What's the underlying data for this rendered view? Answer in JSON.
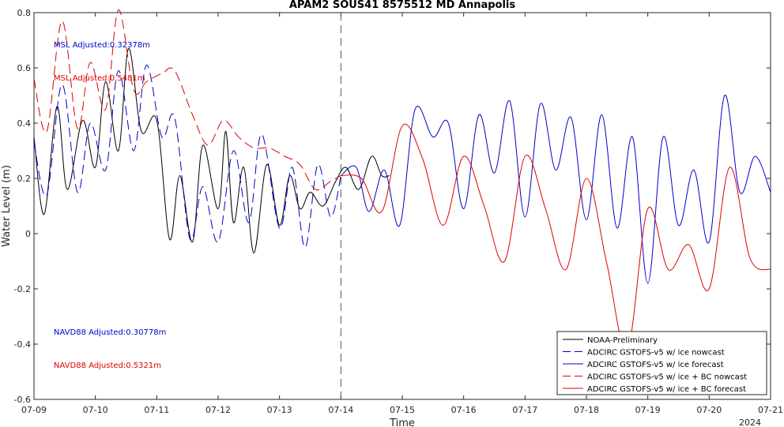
{
  "chart_data": {
    "type": "line",
    "title": "APAM2 SOUS41 8575512 MD Annapolis",
    "xlabel": "Time",
    "ylabel": "Water Level (m)",
    "year_label": "2024",
    "x_ticks": [
      "07-09",
      "07-10",
      "07-11",
      "07-12",
      "07-13",
      "07-14",
      "07-15",
      "07-16",
      "07-17",
      "07-18",
      "07-19",
      "07-20",
      "07-21"
    ],
    "x_range": [
      "2024-07-09",
      "2024-07-21"
    ],
    "y_ticks": [
      "-0.6",
      "-0.4",
      "-0.2",
      "0",
      "0.2",
      "0.4",
      "0.6",
      "0.8"
    ],
    "ylim": [
      -0.6,
      0.8
    ],
    "nowcast_forecast_divider": "2024-07-14",
    "grid": false,
    "legend_position": "bottom-right",
    "annotations": [
      {
        "text": "MSL Adjusted:0.32378m",
        "color": "#0000cc"
      },
      {
        "text": "MSL Adjusted:0.5481m",
        "color": "#e00000"
      },
      {
        "text": "NAVD88 Adjusted:0.30778m",
        "color": "#0000cc"
      },
      {
        "text": "NAVD88 Adjusted:0.5321m",
        "color": "#e00000"
      }
    ],
    "series": [
      {
        "name": "NOAA-Preliminary",
        "color": "#000000",
        "dash": false,
        "x": [
          "07-09 00:00",
          "07-09 04:00",
          "07-09 09:00",
          "07-09 13:00",
          "07-09 19:00",
          "07-10 00:00",
          "07-10 04:00",
          "07-10 09:00",
          "07-10 13:00",
          "07-10 18:00",
          "07-11 00:00",
          "07-11 05:00",
          "07-11 09:00",
          "07-11 14:00",
          "07-11 18:00",
          "07-12 00:00",
          "07-12 03:00",
          "07-12 06:00",
          "07-12 10:00",
          "07-12 14:00",
          "07-12 19:00",
          "07-13 00:00",
          "07-13 04:00",
          "07-13 08:00",
          "07-13 12:00",
          "07-13 17:00",
          "07-13 22:00",
          "07-14 02:00",
          "07-14 07:00",
          "07-14 12:00",
          "07-14 16:00",
          "07-14 19:00"
        ],
        "values": [
          0.35,
          0.07,
          0.46,
          0.16,
          0.41,
          0.24,
          0.55,
          0.3,
          0.67,
          0.37,
          0.41,
          -0.02,
          0.21,
          -0.03,
          0.32,
          0.09,
          0.37,
          0.04,
          0.24,
          -0.07,
          0.25,
          0.03,
          0.21,
          0.09,
          0.15,
          0.1,
          0.19,
          0.24,
          0.16,
          0.28,
          0.21,
          0.21
        ]
      },
      {
        "name": "ADCIRC GSTOFS-v5 w/ ice nowcast",
        "color": "#0000cc",
        "dash": true,
        "x": [
          "07-09 00:00",
          "07-09 05:00",
          "07-09 11:00",
          "07-09 17:00",
          "07-09 22:00",
          "07-10 04:00",
          "07-10 09:00",
          "07-10 15:00",
          "07-10 20:00",
          "07-11 02:00",
          "07-11 07:00",
          "07-11 13:00",
          "07-11 18:00",
          "07-12 00:00",
          "07-12 06:00",
          "07-12 12:00",
          "07-12 17:00",
          "07-13 00:00",
          "07-13 05:00",
          "07-13 10:00",
          "07-13 15:00",
          "07-13 20:00",
          "07-14 00:00"
        ],
        "values": [
          0.33,
          0.14,
          0.54,
          0.15,
          0.4,
          0.23,
          0.59,
          0.3,
          0.61,
          0.35,
          0.42,
          -0.02,
          0.17,
          -0.03,
          0.3,
          0.04,
          0.36,
          0.02,
          0.24,
          -0.05,
          0.25,
          0.06,
          0.21
        ]
      },
      {
        "name": "ADCIRC GSTOFS-v5 w/ ice forecast",
        "color": "#0000cc",
        "dash": false,
        "x": [
          "07-14 00:00",
          "07-14 06:00",
          "07-14 11:00",
          "07-14 17:00",
          "07-14 23:00",
          "07-15 05:00",
          "07-15 12:00",
          "07-15 18:00",
          "07-16 00:00",
          "07-16 06:00",
          "07-16 12:00",
          "07-16 18:00",
          "07-17 00:00",
          "07-17 06:00",
          "07-17 12:00",
          "07-17 18:00",
          "07-18 00:00",
          "07-18 06:00",
          "07-18 12:00",
          "07-18 18:00",
          "07-19 00:00",
          "07-19 06:00",
          "07-19 12:00",
          "07-19 18:00",
          "07-20 00:00",
          "07-20 06:00",
          "07-20 12:00",
          "07-20 18:00",
          "07-21 00:00"
        ],
        "values": [
          0.21,
          0.24,
          0.08,
          0.23,
          0.03,
          0.45,
          0.35,
          0.4,
          0.09,
          0.43,
          0.22,
          0.48,
          0.06,
          0.47,
          0.23,
          0.42,
          0.05,
          0.43,
          0.02,
          0.35,
          -0.18,
          0.35,
          0.03,
          0.23,
          -0.03,
          0.5,
          0.15,
          0.28,
          0.15
        ]
      },
      {
        "name": "ADCIRC GSTOFS-v5 w/ ice + BC nowcast",
        "color": "#e00000",
        "dash": true,
        "x": [
          "07-09 00:00",
          "07-09 05:00",
          "07-09 11:00",
          "07-09 17:00",
          "07-09 22:00",
          "07-10 04:00",
          "07-10 09:00",
          "07-10 15:00",
          "07-10 20:00",
          "07-11 02:00",
          "07-11 07:00",
          "07-11 14:00",
          "07-11 20:00",
          "07-12 02:00",
          "07-12 08:00",
          "07-12 14:00",
          "07-12 20:00",
          "07-13 02:00",
          "07-13 08:00",
          "07-13 14:00",
          "07-13 20:00",
          "07-14 00:00"
        ],
        "values": [
          0.56,
          0.37,
          0.77,
          0.38,
          0.62,
          0.45,
          0.81,
          0.52,
          0.55,
          0.58,
          0.59,
          0.43,
          0.32,
          0.41,
          0.35,
          0.31,
          0.31,
          0.28,
          0.25,
          0.16,
          0.19,
          0.21
        ]
      },
      {
        "name": "ADCIRC GSTOFS-v5 w/ ice + BC forecast",
        "color": "#e00000",
        "dash": false,
        "x": [
          "07-14 00:00",
          "07-14 08:00",
          "07-14 16:00",
          "07-15 00:00",
          "07-15 08:00",
          "07-15 16:00",
          "07-16 00:00",
          "07-16 08:00",
          "07-16 16:00",
          "07-17 00:00",
          "07-17 08:00",
          "07-17 16:00",
          "07-18 00:00",
          "07-18 08:00",
          "07-18 16:00",
          "07-19 00:00",
          "07-19 08:00",
          "07-19 16:00",
          "07-20 00:00",
          "07-20 08:00",
          "07-20 16:00",
          "07-21 00:00"
        ],
        "values": [
          0.21,
          0.2,
          0.08,
          0.39,
          0.27,
          0.03,
          0.28,
          0.1,
          -0.1,
          0.28,
          0.09,
          -0.13,
          0.2,
          -0.11,
          -0.42,
          0.09,
          -0.13,
          -0.04,
          -0.2,
          0.24,
          -0.09,
          -0.13
        ]
      }
    ]
  }
}
